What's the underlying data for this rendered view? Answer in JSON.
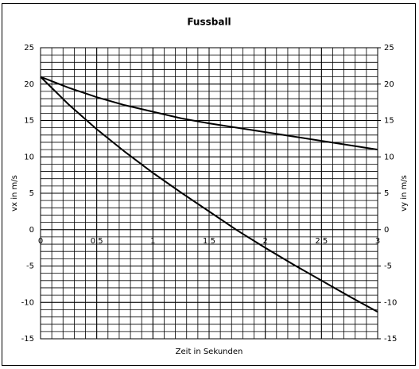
{
  "chart_data": {
    "type": "line",
    "title": "Fussball",
    "x_label": "Zeit in Sekunden",
    "y_label": "vx in m/s",
    "y2_label": "vy in m/s",
    "x": [
      0,
      0.25,
      0.5,
      0.75,
      1,
      1.25,
      1.5,
      1.75,
      2,
      2.25,
      2.5,
      2.75,
      3
    ],
    "series": [
      {
        "name": "vx",
        "color": "#000000",
        "values": [
          21,
          19.5,
          18.2,
          17.1,
          16.2,
          15.3,
          14.6,
          14,
          13.4,
          12.8,
          12.2,
          11.6,
          11
        ]
      },
      {
        "name": "vy",
        "color": "#000000",
        "axis": "y2",
        "values": [
          21,
          17.2,
          13.8,
          10.7,
          7.8,
          5.1,
          2.5,
          -0.1,
          -2.5,
          -4.8,
          -7,
          -9.2,
          -11.3
        ]
      }
    ],
    "xlim": [
      0,
      3
    ],
    "xticks": [
      0,
      {
        "value": 0.5,
        "label": "0,5"
      },
      1,
      {
        "value": 1.5,
        "label": "1,5"
      },
      2,
      {
        "value": 2.5,
        "label": "2,5"
      },
      3
    ],
    "ylim": [
      -15,
      25
    ],
    "yticks": [
      -15,
      -10,
      -5,
      0,
      5,
      10,
      15,
      20,
      25
    ],
    "y2lim": [
      -15,
      25
    ],
    "y2ticks": [
      -15,
      -10,
      -5,
      0,
      5,
      10,
      15,
      20,
      25
    ],
    "grid": true,
    "minor_grid": {
      "x": 0.1,
      "y": 1
    }
  }
}
